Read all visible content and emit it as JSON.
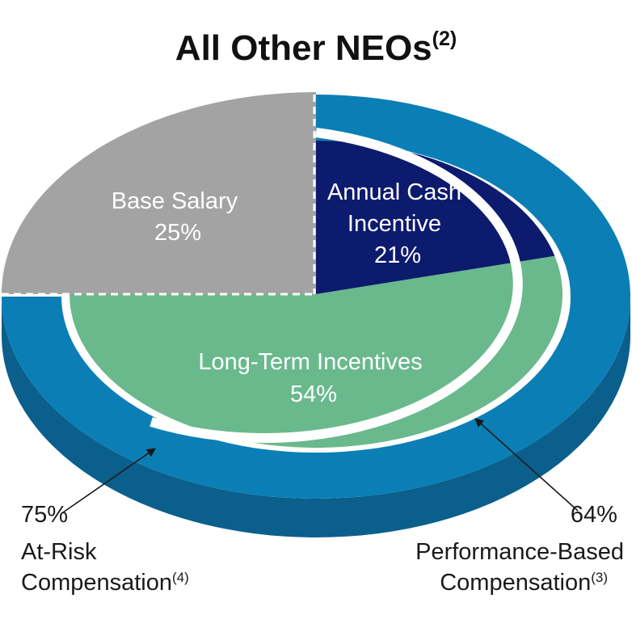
{
  "chart_data": {
    "type": "pie",
    "title": "All Other NEOs",
    "title_sup": "(2)",
    "slices": [
      {
        "label_lines": [
          "Base Salary"
        ],
        "value_label": "25%",
        "value": 25,
        "color": "#a3a3a3"
      },
      {
        "label_lines": [
          "Annual Cash",
          "Incentive"
        ],
        "value_label": "21%",
        "value": 21,
        "color": "#0d1b6e"
      },
      {
        "label_lines": [
          "Long-Term Incentives"
        ],
        "value_label": "54%",
        "value": 54,
        "color": "#69b98c"
      }
    ],
    "ring_color": "#0b7fb5",
    "ring_side_color": "#0a5f8c",
    "annotations": [
      {
        "value_label": "75%",
        "lines": [
          "At-Risk",
          "Compensation"
        ],
        "sup": "(4)",
        "value": 75
      },
      {
        "value_label": "64%",
        "lines": [
          "Performance-Based",
          "Compensation"
        ],
        "sup": "(3)",
        "value": 64
      }
    ]
  }
}
